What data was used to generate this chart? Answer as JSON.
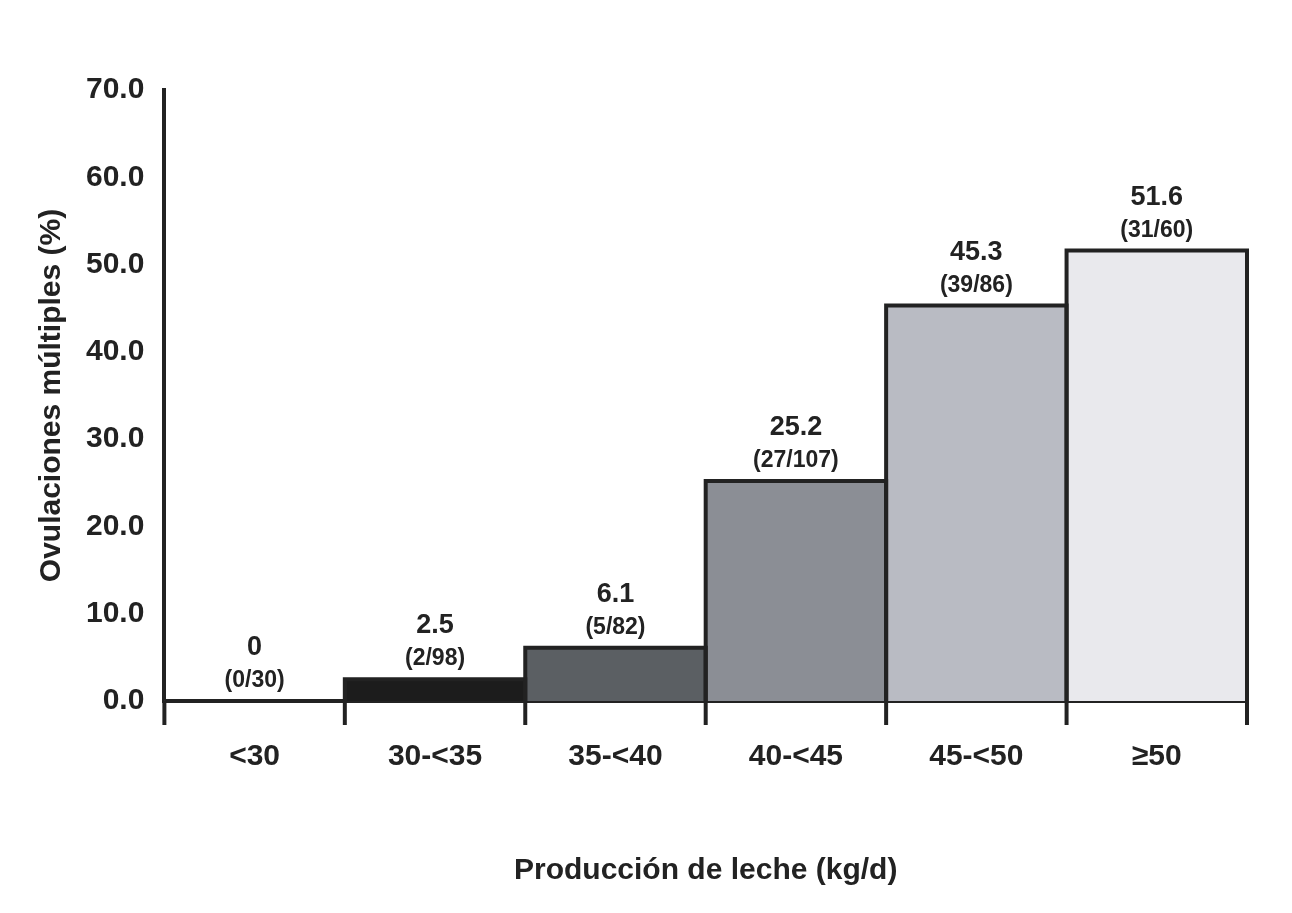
{
  "chart_data": {
    "type": "bar",
    "xlabel": "Producción de leche (kg/d)",
    "ylabel": "Ovulaciones múltiples (%)",
    "categories": [
      "<30",
      "30-<35",
      "35-<40",
      "40-<45",
      "45-<50",
      "≥50"
    ],
    "values": [
      0,
      2.5,
      6.1,
      25.2,
      45.3,
      51.6
    ],
    "colors": [
      "#ffffff",
      "#1c1c1c",
      "#5b5f63",
      "#8b8e95",
      "#b9bbc3",
      "#e9e9ed"
    ],
    "value_labels": [
      "0\n(0/30)",
      "2.5\n(2/98)",
      "6.1\n(5/82)",
      "25.2\n(27/107)",
      "45.3\n(39/86)",
      "51.6\n(31/60)"
    ],
    "ylim": [
      0,
      70
    ],
    "yticks": [
      {
        "value": 0,
        "label": "0.0"
      },
      {
        "value": 10,
        "label": "10.0"
      },
      {
        "value": 20,
        "label": "20.0"
      },
      {
        "value": 30,
        "label": "30.0"
      },
      {
        "value": 40,
        "label": "40.0"
      },
      {
        "value": 50,
        "label": "50.0"
      },
      {
        "value": 60,
        "label": "60.0"
      },
      {
        "value": 70,
        "label": "70.0"
      }
    ],
    "grid": false,
    "legend": false
  }
}
